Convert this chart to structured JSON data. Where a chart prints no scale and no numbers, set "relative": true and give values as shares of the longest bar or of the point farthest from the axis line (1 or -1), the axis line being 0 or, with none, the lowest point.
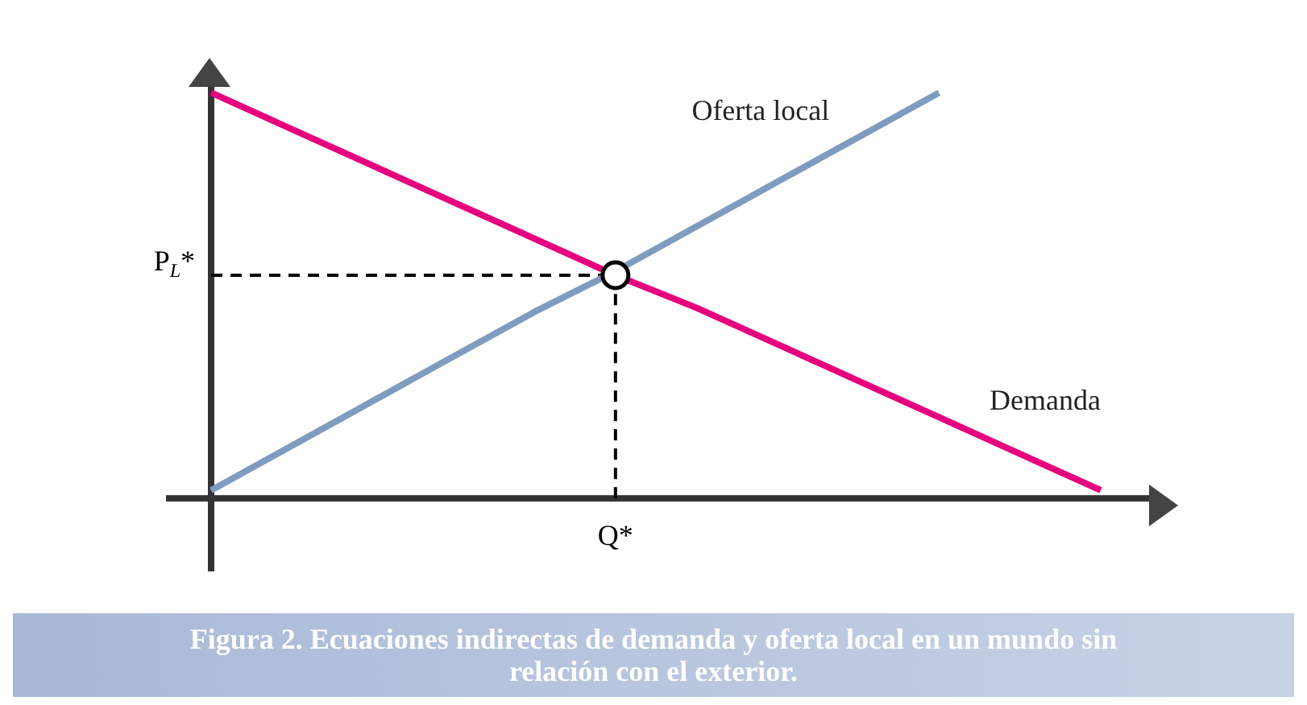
{
  "chart_data": {
    "type": "line",
    "relative": true,
    "title": "Figura 2. Ecuaciones indirectas de demanda y oferta local en un mundo sin relación con el exterior.",
    "legend": false,
    "marker": "none",
    "line_style": "solid",
    "categories": [
      null,
      null,
      null,
      null,
      null,
      null,
      null,
      null,
      null,
      null,
      null,
      null
    ],
    "series": [
      {
        "name": "Demanda",
        "color": "#e6007e",
        "values": [
          1,
          0.91,
          0.82,
          0.73,
          0.64,
          0.55,
          0.47,
          0.38,
          0.29,
          0.2,
          0.11,
          0.02
        ]
      },
      {
        "name": "Oferta local",
        "color": "#7f9cc0",
        "values": [
          0.02,
          0.13,
          0.24,
          0.35,
          0.46,
          0.56,
          0.67,
          0.78,
          0.89,
          1,
          null,
          null
        ]
      }
    ],
    "ref_lines": [
      {
        "axis": "y",
        "value": 0.55,
        "label": "P$_{L}$*",
        "line_style": "dashed",
        "color": "#000000"
      },
      {
        "axis": "x",
        "label": "Q*",
        "line_style": "dashed",
        "color": "#000000"
      }
    ]
  }
}
